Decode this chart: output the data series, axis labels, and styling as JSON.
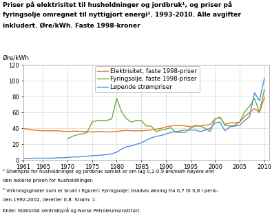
{
  "title_line1": "Priser på elektrisitet til husholdninger og jordbruk¹, og priser på",
  "title_line2": "fyringsolje omregnet til nyttigjort energi². 1993-2010. Alle avgifter",
  "title_line3": "inkludert. Øre/kWh. Faste 1998-kroner",
  "ylabel": "Øre/kWh",
  "ylim": [
    0,
    120
  ],
  "yticks": [
    0,
    20,
    40,
    60,
    80,
    100,
    120
  ],
  "xticks": [
    1961,
    1965,
    1970,
    1975,
    1980,
    1985,
    1990,
    1995,
    2000,
    2005,
    2010
  ],
  "footnote1": "¹ Strømpris for husholdninger og jordbruk samlet er om lag 0,2-0,9 øre/kWh høyere enn",
  "footnote2": "den isolerte prisen for husholdninger.",
  "footnote3": "² Virkningsgrader som er brukt i figuren: Fyringsolje: Gradvis økning fra 0,7 til 0,8 i perio-",
  "footnote4": "den 1992-2002, deretter 0,8. Strøm: 1.",
  "footnote5": "Kilde: Statistisk sentralbyrå og Norsk Petroleumsinstitutt.",
  "legend": [
    "Elektrisitet, faste 1998-priser",
    "Fyringsolje, faste 1998-priser",
    "Løpende strømpriser"
  ],
  "line_colors": [
    "#E8751A",
    "#6AAB3A",
    "#4A90D9"
  ],
  "grid_color": "#CCCCCC",
  "years_elec": [
    1961,
    1962,
    1963,
    1964,
    1965,
    1966,
    1967,
    1968,
    1969,
    1970,
    1971,
    1972,
    1973,
    1974,
    1975,
    1976,
    1977,
    1978,
    1979,
    1980,
    1981,
    1982,
    1983,
    1984,
    1985,
    1986,
    1987,
    1988,
    1989,
    1990,
    1991,
    1992,
    1993,
    1994,
    1995,
    1996,
    1997,
    1998,
    1999,
    2000,
    2001,
    2002,
    2003,
    2004,
    2005,
    2006,
    2007,
    2008,
    2009,
    2010
  ],
  "elec": [
    40,
    39,
    38,
    37.5,
    37,
    37,
    37,
    37,
    36.5,
    36,
    36.5,
    36.5,
    36,
    36,
    35.5,
    36,
    36,
    35.5,
    36,
    36,
    37,
    37.5,
    37,
    37,
    37,
    37.5,
    38,
    39,
    40,
    42,
    43,
    44,
    44,
    43,
    42,
    43,
    43,
    44,
    45,
    52,
    54,
    45,
    47,
    47,
    48,
    55,
    60,
    65,
    60,
    79
  ],
  "years_fyring": [
    1970,
    1971,
    1972,
    1973,
    1974,
    1975,
    1976,
    1977,
    1978,
    1979,
    1980,
    1981,
    1982,
    1983,
    1984,
    1985,
    1986,
    1987,
    1988,
    1989,
    1990,
    1991,
    1992,
    1993,
    1994,
    1995,
    1996,
    1997,
    1998,
    1999,
    2000,
    2001,
    2002,
    2003,
    2004,
    2005,
    2006,
    2007,
    2008,
    2009,
    2010
  ],
  "fyring": [
    27,
    30,
    32,
    33,
    35,
    48,
    50,
    50,
    50,
    52,
    78,
    61,
    52,
    48,
    50,
    50,
    43,
    43,
    36,
    38,
    39,
    41,
    35,
    35,
    35,
    40,
    44,
    43,
    40,
    36,
    52,
    54,
    44,
    43,
    44,
    48,
    61,
    68,
    78,
    60,
    89
  ],
  "years_lopende": [
    1961,
    1962,
    1963,
    1964,
    1965,
    1966,
    1967,
    1968,
    1969,
    1970,
    1971,
    1972,
    1973,
    1974,
    1975,
    1976,
    1977,
    1978,
    1979,
    1980,
    1981,
    1982,
    1983,
    1984,
    1985,
    1986,
    1987,
    1988,
    1989,
    1990,
    1991,
    1992,
    1993,
    1994,
    1995,
    1996,
    1997,
    1998,
    1999,
    2000,
    2001,
    2002,
    2003,
    2004,
    2005,
    2006,
    2007,
    2008,
    2009,
    2010
  ],
  "lopende": [
    2,
    2,
    2.5,
    2.5,
    2.5,
    2.5,
    2.5,
    3,
    3,
    3.5,
    4,
    4,
    4.5,
    5,
    5.5,
    6,
    6.5,
    7,
    8,
    10,
    14,
    17,
    18,
    20,
    22,
    25,
    28,
    30,
    31,
    33,
    35,
    36,
    37,
    38,
    38,
    38,
    36,
    38,
    40,
    47,
    48,
    37,
    42,
    43,
    44,
    50,
    55,
    85,
    75,
    103
  ]
}
